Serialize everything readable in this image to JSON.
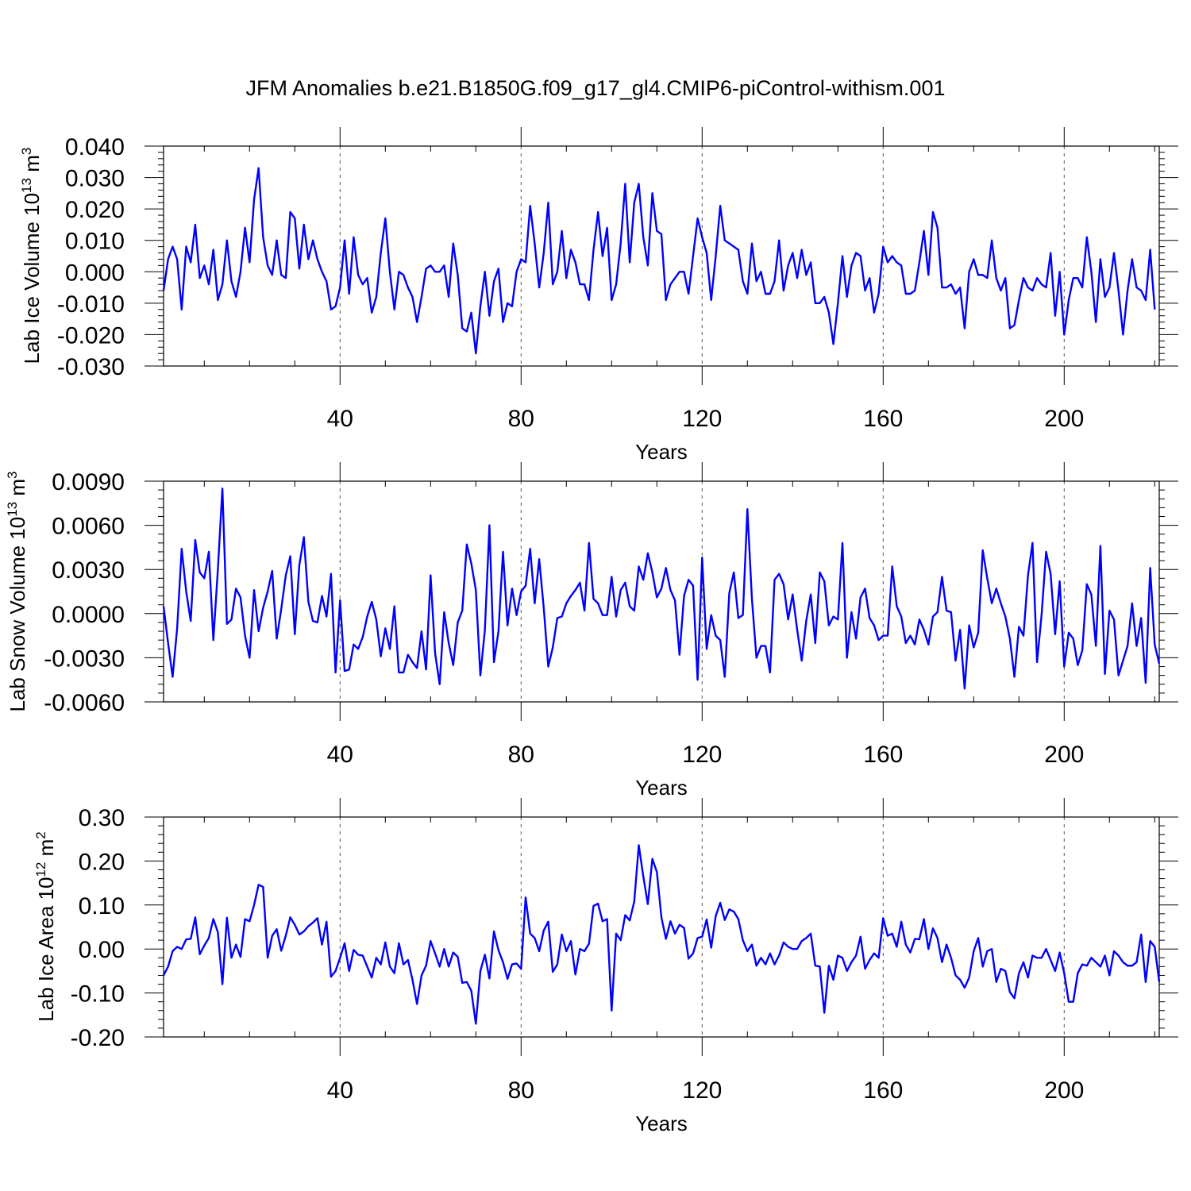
{
  "figure_title": "JFM Anomalies b.e21.B1850G.f09_g17_gl4.CMIP6-piControl-withism.001",
  "colors": {
    "line": "#0000ff",
    "axis": "#000000",
    "background": "#ffffff"
  },
  "chart_data": [
    {
      "type": "line",
      "title": "JFM Anomalies b.e21.B1850G.f09_g17_gl4.CMIP6-piControl-withism.001",
      "ylabel_main": "Lab Ice Volume 10",
      "ylabel_exp": "13",
      "ylabel_unit": " m",
      "ylabel_unit_exp": "3",
      "xlabel": "Years",
      "xlim": [
        1,
        221
      ],
      "ylim": [
        -0.03,
        0.04
      ],
      "xticks": [
        40,
        80,
        120,
        160,
        200
      ],
      "xtick_labels": [
        "40",
        "80",
        "120",
        "160",
        "200"
      ],
      "yticks": [
        -0.03,
        -0.02,
        -0.01,
        0.0,
        0.01,
        0.02,
        0.03,
        0.04
      ],
      "ytick_labels": [
        "-0.030",
        "-0.020",
        "-0.010",
        "0.000",
        "0.010",
        "0.020",
        "0.030",
        "0.040"
      ],
      "grid": "dashed vertical at x ticks",
      "x_start": 1,
      "values": [
        -0.006,
        0.004,
        0.008,
        0.004,
        -0.012,
        0.008,
        0.003,
        0.015,
        -0.002,
        0.002,
        -0.004,
        0.007,
        -0.009,
        -0.004,
        0.01,
        -0.003,
        -0.008,
        0.0,
        0.014,
        0.003,
        0.023,
        0.033,
        0.011,
        0.002,
        -0.001,
        0.01,
        -0.001,
        -0.002,
        0.019,
        0.017,
        0.001,
        0.015,
        0.004,
        0.01,
        0.004,
        0.0,
        -0.003,
        -0.012,
        -0.011,
        -0.005,
        0.01,
        -0.007,
        0.011,
        -0.001,
        -0.004,
        -0.002,
        -0.013,
        -0.008,
        0.006,
        0.017,
        0.0,
        -0.012,
        0.0,
        -0.001,
        -0.005,
        -0.008,
        -0.016,
        -0.008,
        0.001,
        0.002,
        0.0,
        0.0,
        0.002,
        -0.008,
        0.009,
        -0.001,
        -0.018,
        -0.019,
        -0.013,
        -0.026,
        -0.011,
        0.0,
        -0.014,
        -0.003,
        0.001,
        -0.016,
        -0.01,
        -0.011,
        0.0,
        0.004,
        0.003,
        0.021,
        0.009,
        -0.005,
        0.006,
        0.022,
        -0.004,
        0.0,
        0.013,
        -0.002,
        0.007,
        0.003,
        -0.004,
        -0.004,
        -0.009,
        0.007,
        0.019,
        0.005,
        0.014,
        -0.009,
        -0.004,
        0.009,
        0.028,
        0.003,
        0.022,
        0.028,
        0.011,
        0.002,
        0.025,
        0.013,
        0.012,
        -0.009,
        -0.004,
        -0.002,
        0.0,
        0.0,
        -0.007,
        0.005,
        0.017,
        0.011,
        0.006,
        -0.009,
        0.005,
        0.021,
        0.01,
        0.009,
        0.008,
        0.007,
        -0.003,
        -0.007,
        0.009,
        -0.003,
        0.0,
        -0.007,
        -0.007,
        -0.003,
        0.01,
        -0.006,
        0.002,
        0.006,
        -0.002,
        0.007,
        -0.001,
        0.003,
        -0.01,
        -0.01,
        -0.008,
        -0.013,
        -0.023,
        -0.01,
        0.005,
        -0.008,
        0.002,
        0.006,
        0.005,
        -0.006,
        -0.002,
        -0.013,
        -0.007,
        0.008,
        0.003,
        0.005,
        0.003,
        0.002,
        -0.007,
        -0.007,
        -0.006,
        0.003,
        0.013,
        -0.001,
        0.019,
        0.014,
        -0.005,
        -0.005,
        -0.004,
        -0.007,
        -0.005,
        -0.018,
        0.0,
        0.004,
        -0.001,
        -0.001,
        -0.002,
        0.01,
        -0.002,
        -0.006,
        -0.002,
        -0.018,
        -0.017,
        -0.009,
        -0.002,
        -0.005,
        -0.006,
        -0.002,
        -0.004,
        -0.005,
        0.006,
        -0.014,
        0.0,
        -0.02,
        -0.009,
        -0.002,
        -0.002,
        -0.005,
        0.011,
        0.0,
        -0.016,
        0.004,
        -0.008,
        -0.005,
        0.006,
        -0.006,
        -0.02,
        -0.006,
        0.004,
        -0.005,
        -0.006,
        -0.009,
        0.007,
        -0.012
      ]
    },
    {
      "type": "line",
      "ylabel_main": "Lab Snow Volume 10",
      "ylabel_exp": "13",
      "ylabel_unit": " m",
      "ylabel_unit_exp": "3",
      "xlabel": "Years",
      "xlim": [
        1,
        221
      ],
      "ylim": [
        -0.006,
        0.009
      ],
      "xticks": [
        40,
        80,
        120,
        160,
        200
      ],
      "xtick_labels": [
        "40",
        "80",
        "120",
        "160",
        "200"
      ],
      "yticks": [
        -0.006,
        -0.003,
        0.0,
        0.003,
        0.006,
        0.009
      ],
      "ytick_labels": [
        "-0.0060",
        "-0.0030",
        "0.0000",
        "0.0030",
        "0.0060",
        "0.0090"
      ],
      "grid": "dashed vertical at x ticks",
      "x_start": 1,
      "values": [
        0.0005,
        -0.002,
        -0.0043,
        -0.001,
        0.0044,
        0.0015,
        -0.0005,
        0.005,
        0.0028,
        0.0024,
        0.0042,
        -0.0018,
        0.003,
        0.0085,
        -0.0007,
        -0.0004,
        0.0017,
        0.0011,
        -0.0015,
        -0.003,
        0.0016,
        -0.0012,
        0.0004,
        0.0015,
        0.0029,
        -0.0017,
        0.0003,
        0.0026,
        0.0039,
        -0.0014,
        0.0033,
        0.0052,
        0.0008,
        -0.0005,
        -0.0006,
        0.0012,
        -0.0002,
        0.0027,
        -0.004,
        0.0009,
        -0.0039,
        -0.0038,
        -0.0021,
        -0.0024,
        -0.0016,
        -0.0002,
        0.0008,
        -0.0004,
        -0.0029,
        -0.001,
        -0.0024,
        0.0005,
        -0.004,
        -0.004,
        -0.0028,
        -0.0033,
        -0.0037,
        -0.0012,
        -0.0038,
        0.0026,
        -0.0027,
        -0.0048,
        0.0001,
        -0.002,
        -0.0035,
        -0.0006,
        0.0002,
        0.0047,
        0.0034,
        0.0016,
        -0.0042,
        -0.0011,
        0.006,
        -0.0033,
        -0.0012,
        0.0042,
        -0.0008,
        0.0017,
        -0.0001,
        0.0015,
        0.0019,
        0.0044,
        0.0007,
        0.0037,
        0.0004,
        -0.0036,
        -0.0023,
        -0.0003,
        -0.0002,
        0.0007,
        0.0012,
        0.0016,
        0.0021,
        0.0002,
        0.0048,
        0.001,
        0.0007,
        -0.0001,
        -0.0001,
        0.0025,
        -0.0002,
        0.0016,
        0.0021,
        0.0005,
        0.0002,
        0.0032,
        0.0023,
        0.0041,
        0.0028,
        0.0011,
        0.0017,
        0.0031,
        0.0016,
        0.0009,
        -0.0028,
        0.0012,
        0.0023,
        0.0019,
        -0.0045,
        0.0038,
        -0.0024,
        -0.0001,
        -0.0015,
        -0.0018,
        -0.0043,
        0.0014,
        0.0028,
        -0.0003,
        -0.0001,
        0.0071,
        0.001,
        -0.003,
        -0.0022,
        -0.0022,
        -0.004,
        0.0023,
        0.0027,
        0.002,
        -0.0004,
        0.0013,
        -0.0011,
        -0.0032,
        -0.0005,
        0.0013,
        -0.002,
        0.0028,
        0.0022,
        -0.0008,
        -0.0002,
        -0.0004,
        0.0048,
        -0.003,
        0.0001,
        -0.0017,
        0.0011,
        0.0017,
        -0.0003,
        -0.0008,
        -0.0018,
        -0.0015,
        -0.0015,
        0.0032,
        0.0005,
        -0.0002,
        -0.002,
        -0.0015,
        -0.0021,
        -0.0004,
        -0.0011,
        -0.0021,
        -0.0002,
        0.0001,
        0.0025,
        0.0002,
        0.0001,
        -0.0032,
        -0.0011,
        -0.0051,
        -0.0008,
        -0.0023,
        -0.0013,
        0.0043,
        0.0024,
        0.0007,
        0.0017,
        0.0007,
        -0.0002,
        -0.0017,
        -0.0043,
        -0.0009,
        -0.0015,
        0.0026,
        0.0048,
        -0.0033,
        -0.0001,
        0.0042,
        0.0027,
        -0.0014,
        0.0022,
        -0.0036,
        -0.0013,
        -0.0017,
        -0.0035,
        -0.0025,
        0.002,
        0.0013,
        -0.0022,
        0.0046,
        -0.0041,
        0.0002,
        -0.0004,
        -0.0042,
        -0.0032,
        -0.0022,
        0.0007,
        -0.0022,
        -0.0003,
        -0.0047,
        0.0031,
        -0.0021,
        -0.0034
      ]
    },
    {
      "type": "line",
      "ylabel_main": "Lab Ice Area 10",
      "ylabel_exp": "12",
      "ylabel_unit": " m",
      "ylabel_unit_exp": "2",
      "xlabel": "Years",
      "xlim": [
        1,
        221
      ],
      "ylim": [
        -0.2,
        0.3
      ],
      "xticks": [
        40,
        80,
        120,
        160,
        200
      ],
      "xtick_labels": [
        "40",
        "80",
        "120",
        "160",
        "200"
      ],
      "yticks": [
        -0.2,
        -0.1,
        0.0,
        0.1,
        0.2,
        0.3
      ],
      "ytick_labels": [
        "-0.20",
        "-0.10",
        "0.00",
        "0.10",
        "0.20",
        "0.30"
      ],
      "grid": "dashed vertical at x ticks",
      "x_start": 1,
      "values": [
        -0.06,
        -0.04,
        -0.005,
        0.005,
        0.0,
        0.022,
        0.023,
        0.072,
        -0.012,
        0.008,
        0.025,
        0.068,
        0.038,
        -0.08,
        0.071,
        -0.02,
        0.01,
        -0.018,
        0.068,
        0.063,
        0.1,
        0.146,
        0.141,
        -0.02,
        0.03,
        0.045,
        -0.004,
        0.03,
        0.072,
        0.055,
        0.033,
        0.04,
        0.052,
        0.06,
        0.07,
        0.01,
        0.062,
        -0.063,
        -0.05,
        -0.02,
        0.013,
        -0.05,
        -0.002,
        -0.013,
        -0.015,
        -0.04,
        -0.065,
        -0.02,
        -0.035,
        0.015,
        -0.04,
        -0.055,
        0.013,
        -0.035,
        -0.025,
        -0.07,
        -0.125,
        -0.06,
        -0.038,
        0.018,
        -0.01,
        -0.04,
        0.0,
        -0.04,
        -0.008,
        -0.018,
        -0.077,
        -0.075,
        -0.095,
        -0.17,
        -0.05,
        -0.013,
        -0.067,
        0.04,
        -0.003,
        -0.03,
        -0.068,
        -0.035,
        -0.033,
        -0.045,
        0.117,
        0.035,
        0.025,
        -0.005,
        0.042,
        0.062,
        -0.052,
        -0.035,
        0.033,
        -0.005,
        0.018,
        -0.058,
        0.0,
        -0.005,
        0.012,
        0.098,
        0.103,
        0.063,
        0.068,
        -0.14,
        0.035,
        0.02,
        0.077,
        0.065,
        0.108,
        0.236,
        0.165,
        0.102,
        0.205,
        0.175,
        0.072,
        0.023,
        0.063,
        0.035,
        0.055,
        0.048,
        -0.022,
        -0.01,
        0.025,
        0.028,
        0.067,
        0.003,
        0.075,
        0.105,
        0.066,
        0.09,
        0.085,
        0.068,
        0.02,
        -0.005,
        0.01,
        -0.038,
        -0.02,
        -0.035,
        -0.01,
        -0.035,
        -0.015,
        0.015,
        0.005,
        0.0,
        0.0,
        0.018,
        0.025,
        0.035,
        -0.038,
        -0.04,
        -0.145,
        -0.038,
        -0.07,
        -0.015,
        -0.02,
        -0.05,
        -0.03,
        -0.015,
        0.028,
        -0.045,
        -0.025,
        -0.01,
        -0.02,
        0.07,
        0.03,
        0.035,
        0.005,
        0.062,
        0.01,
        -0.008,
        0.023,
        0.022,
        0.068,
        0.0,
        0.047,
        0.025,
        -0.03,
        0.01,
        -0.02,
        -0.06,
        -0.07,
        -0.088,
        -0.065,
        -0.005,
        0.025,
        -0.04,
        -0.005,
        0.0,
        -0.075,
        -0.045,
        -0.05,
        -0.098,
        -0.112,
        -0.055,
        -0.03,
        -0.065,
        -0.015,
        -0.02,
        -0.02,
        0.0,
        -0.025,
        -0.05,
        -0.008,
        -0.055,
        -0.12,
        -0.12,
        -0.055,
        -0.035,
        -0.038,
        -0.02,
        -0.03,
        -0.04,
        -0.015,
        -0.06,
        -0.005,
        -0.015,
        -0.03,
        -0.038,
        -0.038,
        -0.03,
        0.033,
        -0.075,
        0.018,
        0.005,
        -0.075
      ]
    }
  ]
}
